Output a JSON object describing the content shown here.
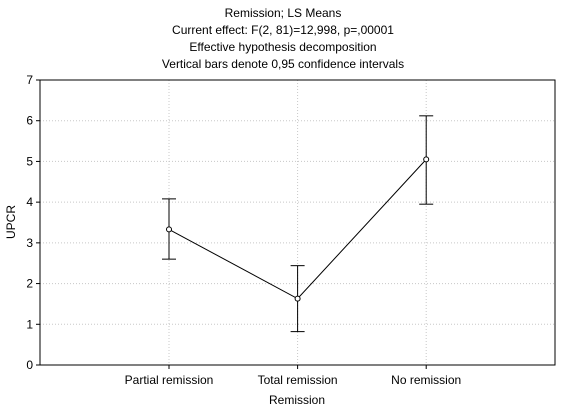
{
  "chart_data": {
    "type": "line",
    "title_lines": [
      "Remission; LS Means",
      "Current effect: F(2, 81)=12,998, p=,00001",
      "Effective hypothesis decomposition",
      "Vertical bars denote 0,95 confidence intervals"
    ],
    "xlabel": "Remission",
    "ylabel": "UPCR",
    "categories": [
      "Partial remission",
      "Total remission",
      "No remission"
    ],
    "values": [
      3.33,
      1.63,
      5.05
    ],
    "ci_lower": [
      2.6,
      0.82,
      3.95
    ],
    "ci_upper": [
      4.08,
      2.44,
      6.12
    ],
    "ylim": [
      0,
      7
    ],
    "yticks": [
      "0",
      "1",
      "2",
      "3",
      "4",
      "5",
      "6",
      "7"
    ],
    "grid": true,
    "colors": {
      "line": "#000000",
      "grid": "#c8c8c8",
      "frame": "#000000",
      "background": "#ffffff"
    }
  }
}
